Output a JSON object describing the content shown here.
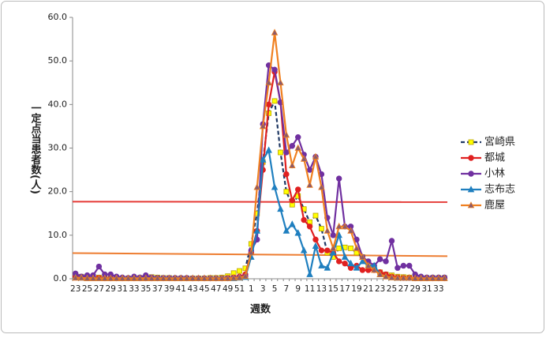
{
  "chart_data": {
    "type": "line",
    "y_label": "一定点当患者数(人)",
    "x_label": "週数",
    "categories": [
      "23",
      null,
      "25",
      null,
      "27",
      null,
      "29",
      null,
      "31",
      null,
      "33",
      null,
      "35",
      null,
      "37",
      null,
      "39",
      null,
      "41",
      null,
      "43",
      null,
      "45",
      null,
      "47",
      null,
      "49",
      null,
      "51",
      null,
      "1",
      null,
      "3",
      null,
      "5",
      null,
      "7",
      null,
      "9",
      null,
      "11",
      null,
      "13",
      null,
      "15",
      null,
      "17",
      null,
      "19",
      null,
      "21",
      null,
      "23",
      null,
      "25",
      null,
      "27",
      null,
      "29",
      null,
      "31",
      null,
      "33",
      null
    ],
    "ylim": [
      0,
      60
    ],
    "yticks": [
      {
        "value": 0,
        "label": "0.0"
      },
      {
        "value": 10,
        "label": "10.0"
      },
      {
        "value": 20,
        "label": "20.0"
      },
      {
        "value": 30,
        "label": "30.0"
      },
      {
        "value": 40,
        "label": "40.0"
      },
      {
        "value": 50,
        "label": "50.0"
      },
      {
        "value": 60,
        "label": "60.0"
      }
    ],
    "reference_lines": [
      {
        "color": "#e53935",
        "values": [
          17.7,
          17.6
        ]
      },
      {
        "color": "#ed7d31",
        "values": [
          5.9,
          5.2
        ]
      }
    ],
    "series": [
      {
        "name": "宮崎県",
        "color": "#1f3864",
        "marker": "square",
        "marker_fill": "#ffff00",
        "dashed": true,
        "values": [
          0.8,
          0.5,
          0.3,
          0.3,
          0.3,
          0.2,
          0.2,
          0.2,
          0.1,
          0.1,
          0.1,
          0.2,
          0.3,
          0.4,
          0.3,
          0.2,
          0.2,
          0.1,
          0.1,
          0.1,
          0.1,
          0.1,
          0.1,
          0.2,
          0.2,
          0.3,
          0.6,
          1.3,
          1.8,
          2.4,
          8.0,
          15.0,
          26.8,
          38.0,
          40.8,
          29.0,
          20.0,
          17.0,
          19.0,
          16.0,
          13.0,
          14.5,
          11.5,
          6.0,
          5.0,
          7.0,
          7.2,
          7.0,
          6.0,
          5.0,
          3.0,
          2.5,
          1.5,
          1.0,
          0.8,
          0.5,
          0.4,
          0.3,
          0.3,
          0.2,
          0.2,
          0.2,
          0.2,
          0.2
        ]
      },
      {
        "name": "都城",
        "color": "#e02020",
        "marker": "circle",
        "marker_fill": "#e02020",
        "dashed": false,
        "values": [
          0.5,
          0.3,
          0.3,
          0.2,
          0.2,
          0.1,
          0.1,
          0.1,
          0.1,
          0.1,
          0.1,
          0.1,
          0.1,
          0.1,
          0.1,
          0.1,
          0.1,
          0.1,
          0.1,
          0.1,
          0.1,
          0.1,
          0.1,
          0.1,
          0.1,
          0.1,
          0.2,
          0.3,
          0.5,
          1.0,
          6.0,
          11.0,
          25.0,
          40.0,
          47.5,
          40.5,
          24.0,
          18.0,
          20.5,
          13.5,
          12.0,
          9.0,
          6.5,
          6.5,
          6.0,
          4.0,
          3.5,
          2.5,
          3.0,
          2.0,
          2.0,
          2.0,
          1.5,
          1.0,
          0.5,
          0.3,
          0.2,
          0.2,
          0.1,
          0.1,
          0.1,
          0.1,
          0.1,
          0.1
        ]
      },
      {
        "name": "小林",
        "color": "#7030a0",
        "marker": "circle",
        "marker_fill": "#7030a0",
        "dashed": false,
        "values": [
          1.2,
          0.5,
          0.8,
          0.8,
          2.8,
          1.0,
          1.0,
          0.5,
          0.3,
          0.2,
          0.5,
          0.3,
          0.8,
          0.3,
          0.2,
          0.2,
          0.2,
          0.2,
          0.2,
          0.2,
          0.1,
          0.1,
          0.1,
          0.1,
          0.1,
          0.1,
          0.1,
          0.2,
          0.3,
          0.5,
          6.5,
          9.0,
          35.5,
          49.0,
          48.0,
          40.5,
          29.0,
          30.5,
          32.5,
          28.5,
          25.0,
          28.0,
          24.0,
          14.0,
          10.0,
          23.0,
          12.0,
          12.0,
          9.0,
          5.0,
          4.0,
          3.0,
          4.5,
          4.0,
          8.7,
          2.5,
          3.0,
          3.0,
          1.0,
          0.5,
          0.3,
          0.3,
          0.3,
          0.3
        ]
      },
      {
        "name": "志布志",
        "color": "#1f7fbf",
        "marker": "triangle",
        "marker_fill": "#1f7fbf",
        "dashed": false,
        "values": [
          0.3,
          0.2,
          0.1,
          0.1,
          0.1,
          0.1,
          0.1,
          0.1,
          0.1,
          0.1,
          0.1,
          0.1,
          0.1,
          0.1,
          0.1,
          0.1,
          0.1,
          0.1,
          0.1,
          0.1,
          0.1,
          0.1,
          0.1,
          0.1,
          0.1,
          0.1,
          0.1,
          0.1,
          0.2,
          0.4,
          5.0,
          11.0,
          27.3,
          29.5,
          21.0,
          16.0,
          11.0,
          12.5,
          10.5,
          6.5,
          1.0,
          7.5,
          3.0,
          2.5,
          6.0,
          10.0,
          5.0,
          3.5,
          2.5,
          4.0,
          3.0,
          3.0,
          1.0,
          0.5,
          0.3,
          0.2,
          0.2,
          0.2,
          0.1,
          0.1,
          0.1,
          0.1,
          0.1,
          0.1
        ]
      },
      {
        "name": "鹿屋",
        "color": "#f08020",
        "marker": "triangle",
        "marker_fill": "#8b5a6b",
        "dashed": false,
        "values": [
          0.2,
          0.2,
          0.1,
          0.1,
          0.1,
          0.1,
          0.1,
          0.1,
          0.1,
          0.1,
          0.1,
          0.1,
          0.1,
          0.1,
          0.1,
          0.1,
          0.1,
          0.1,
          0.1,
          0.1,
          0.1,
          0.1,
          0.1,
          0.1,
          0.1,
          0.1,
          0.1,
          0.2,
          0.3,
          0.6,
          6.0,
          21.0,
          35.0,
          45.0,
          56.5,
          45.0,
          33.0,
          26.0,
          30.0,
          27.5,
          21.5,
          28.0,
          21.0,
          11.0,
          7.0,
          12.0,
          12.0,
          11.0,
          7.0,
          5.0,
          3.0,
          2.0,
          1.0,
          0.5,
          0.3,
          0.2,
          0.2,
          0.2,
          0.1,
          0.1,
          0.1,
          0.1,
          0.1,
          0.1
        ]
      }
    ]
  }
}
